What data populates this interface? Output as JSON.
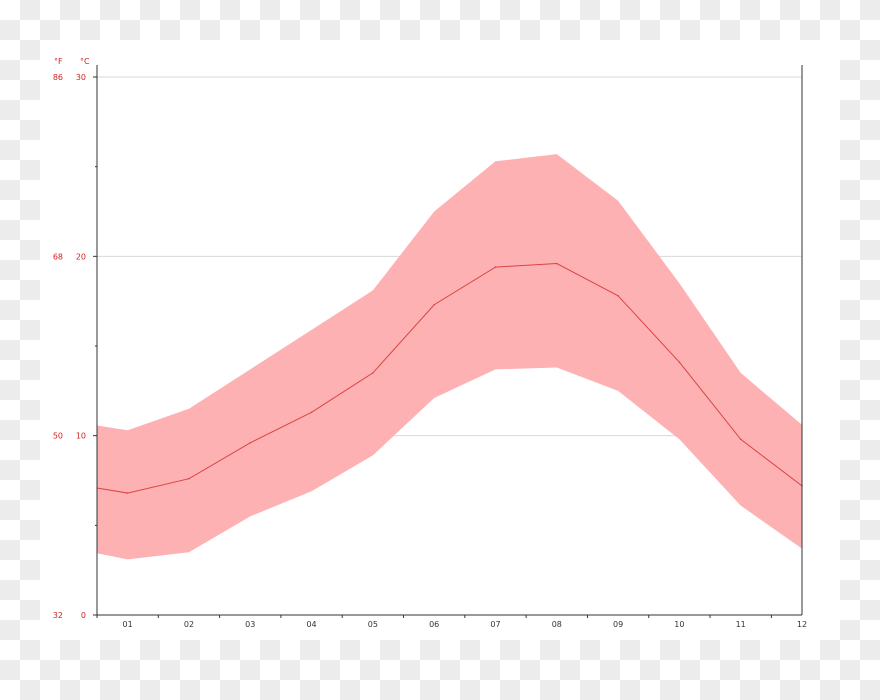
{
  "chart_data": {
    "type": "area",
    "title": "",
    "xlabel": "",
    "ylabel": "",
    "y_unit_left": "°F",
    "y_unit_right": "°C",
    "categories": [
      "01",
      "02",
      "03",
      "04",
      "05",
      "06",
      "07",
      "08",
      "09",
      "10",
      "11",
      "12"
    ],
    "y_ticks_c": [
      0,
      10,
      20,
      30
    ],
    "y_ticks_f": [
      32,
      50,
      68,
      86
    ],
    "ylim": [
      0,
      30
    ],
    "grid": true,
    "series": [
      {
        "name": "",
        "kind": "mean",
        "values": [
          6.8,
          7.6,
          9.6,
          11.3,
          13.5,
          17.3,
          19.4,
          19.6,
          17.8,
          14.1,
          9.8,
          7.2
        ]
      },
      {
        "name": "",
        "kind": "max",
        "values": [
          10.3,
          11.5,
          13.7,
          15.9,
          18.1,
          22.5,
          25.3,
          25.7,
          23.1,
          18.5,
          13.5,
          10.6
        ]
      },
      {
        "name": "",
        "kind": "min",
        "values": [
          3.1,
          3.5,
          5.5,
          6.9,
          8.9,
          12.1,
          13.7,
          13.8,
          12.5,
          9.8,
          6.1,
          3.7
        ]
      }
    ],
    "colors": {
      "band": "#feb1b2",
      "mean_line": "#d94545",
      "axis": "#333333",
      "grid": "#d9d9d9",
      "y_label": "#d0231f"
    }
  }
}
